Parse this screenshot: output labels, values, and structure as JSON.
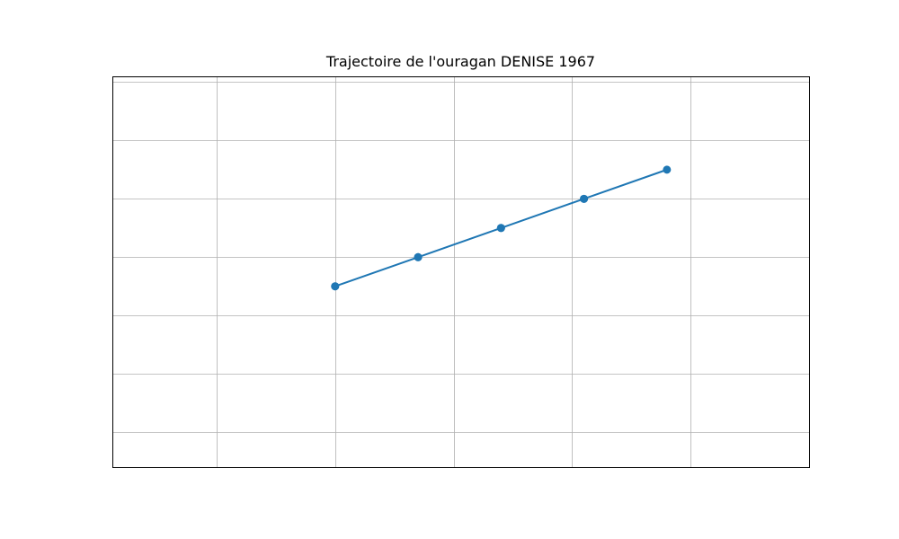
{
  "chart_data": {
    "type": "line",
    "title": "Trajectoire de l'ouragan DENISE 1967",
    "xlabel": "",
    "ylabel": "",
    "grid": true,
    "x_ticks": [
      -0.2,
      0.8,
      1.8,
      2.8,
      3.8,
      4.8
    ],
    "y_ticks": [
      0.2,
      0.7,
      1.2,
      1.7,
      2.2,
      2.7,
      3.2
    ],
    "xlim": [
      -1.08,
      4.8
    ],
    "ylim": [
      -0.1,
      3.25
    ],
    "series": [
      {
        "color": "#1f77b4",
        "x": [
          0.8,
          1.5,
          2.2,
          2.9,
          3.6,
          2.9,
          2.2,
          1.5,
          0.8
        ],
        "y": [
          1.45,
          1.7,
          1.95,
          2.2,
          2.45,
          2.2,
          1.95,
          1.7,
          1.45
        ],
        "points": [
          {
            "x": 0.8,
            "y": 1.45
          },
          {
            "x": 1.5,
            "y": 1.7
          },
          {
            "x": 2.2,
            "y": 1.95
          },
          {
            "x": 2.9,
            "y": 2.2
          },
          {
            "x": 3.6,
            "y": 2.45
          },
          {
            "x": 2.9,
            "y": 2.2
          },
          {
            "x": 2.2,
            "y": 1.95
          },
          {
            "x": 1.5,
            "y": 1.7
          },
          {
            "x": 0.8,
            "y": 1.45
          }
        ]
      }
    ]
  }
}
